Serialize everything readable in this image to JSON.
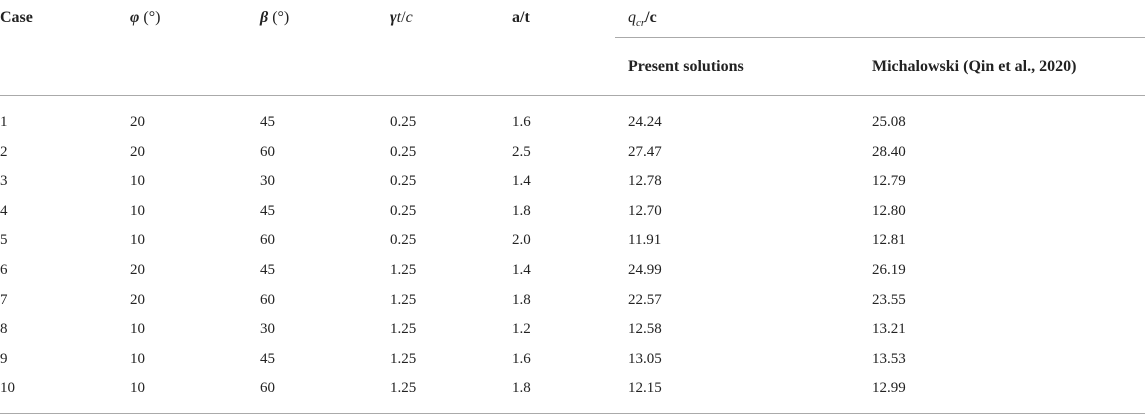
{
  "table": {
    "header": [
      [
        "Case"
      ],
      [
        "φ",
        " (°)"
      ],
      [
        "β",
        " (°)"
      ],
      [
        "γ",
        "t",
        "/",
        "c"
      ],
      [
        "a/t"
      ],
      [
        "q",
        "cr",
        "/c"
      ]
    ],
    "subheader": [
      "Present solutions",
      "Michalowski (Qin et al., 2020)"
    ],
    "rows": [
      [
        "1",
        "20",
        "45",
        "0.25",
        "1.6",
        "24.24",
        "25.08"
      ],
      [
        "2",
        "20",
        "60",
        "0.25",
        "2.5",
        "27.47",
        "28.40"
      ],
      [
        "3",
        "10",
        "30",
        "0.25",
        "1.4",
        "12.78",
        "12.79"
      ],
      [
        "4",
        "10",
        "45",
        "0.25",
        "1.8",
        "12.70",
        "12.80"
      ],
      [
        "5",
        "10",
        "60",
        "0.25",
        "2.0",
        "11.91",
        "12.81"
      ],
      [
        "6",
        "20",
        "45",
        "1.25",
        "1.4",
        "24.99",
        "26.19"
      ],
      [
        "7",
        "20",
        "60",
        "1.25",
        "1.8",
        "22.57",
        "23.55"
      ],
      [
        "8",
        "10",
        "30",
        "1.25",
        "1.2",
        "12.58",
        "13.21"
      ],
      [
        "9",
        "10",
        "45",
        "1.25",
        "1.6",
        "13.05",
        "13.53"
      ],
      [
        "10",
        "10",
        "60",
        "1.25",
        "1.8",
        "12.15",
        "12.99"
      ]
    ]
  }
}
